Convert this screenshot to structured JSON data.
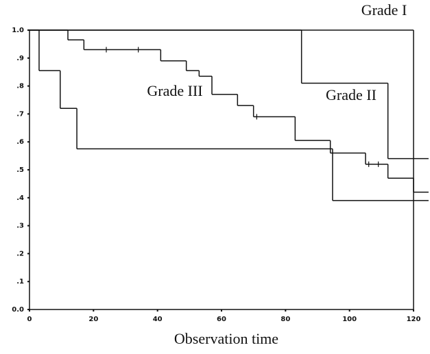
{
  "chart_data": {
    "type": "step",
    "x_label": "Observation time",
    "xlim": [
      0,
      120
    ],
    "xticks": [
      0,
      20,
      40,
      60,
      80,
      100,
      120
    ],
    "ylim": [
      0,
      1
    ],
    "yticks": [
      {
        "value": 0,
        "label": "0.0"
      },
      {
        "value": 0.1,
        "label": ".1"
      },
      {
        "value": 0.2,
        "label": ".2"
      },
      {
        "value": 0.3,
        "label": ".3"
      },
      {
        "value": 0.4,
        "label": ".4"
      },
      {
        "value": 0.5,
        "label": ".5"
      },
      {
        "value": 0.6,
        "label": ".6"
      },
      {
        "value": 0.7,
        "label": ".7"
      },
      {
        "value": 0.8,
        "label": ".8"
      },
      {
        "value": 0.9,
        "label": ".9"
      },
      {
        "value": 1,
        "label": "1.0"
      }
    ],
    "series": [
      {
        "name": "Grade I",
        "color": "#111111",
        "x": [
          0,
          120
        ],
        "values": [
          1,
          0
        ]
      },
      {
        "name": "Grade II",
        "color": "#111111",
        "x": [
          0,
          85,
          112,
          124.7
        ],
        "values": [
          1,
          0.81,
          0.54,
          0.54
        ]
      },
      {
        "name": "Grade III",
        "color": "#111111",
        "x": [
          0,
          12,
          17,
          41,
          49,
          53,
          57,
          65,
          70,
          83,
          94,
          105,
          112,
          120,
          124.7
        ],
        "values": [
          1,
          0.965,
          0.93,
          0.89,
          0.855,
          0.835,
          0.77,
          0.73,
          0.69,
          0.605,
          0.56,
          0.52,
          0.47,
          0.42,
          0.42
        ],
        "censored": [
          24,
          34,
          71,
          106,
          109
        ]
      },
      {
        "color": "#111111",
        "x": [
          0,
          3,
          9.6,
          14.8,
          94.7,
          124.7
        ],
        "values": [
          1,
          0.855,
          0.72,
          0.575,
          0.39,
          0.39
        ]
      }
    ]
  }
}
